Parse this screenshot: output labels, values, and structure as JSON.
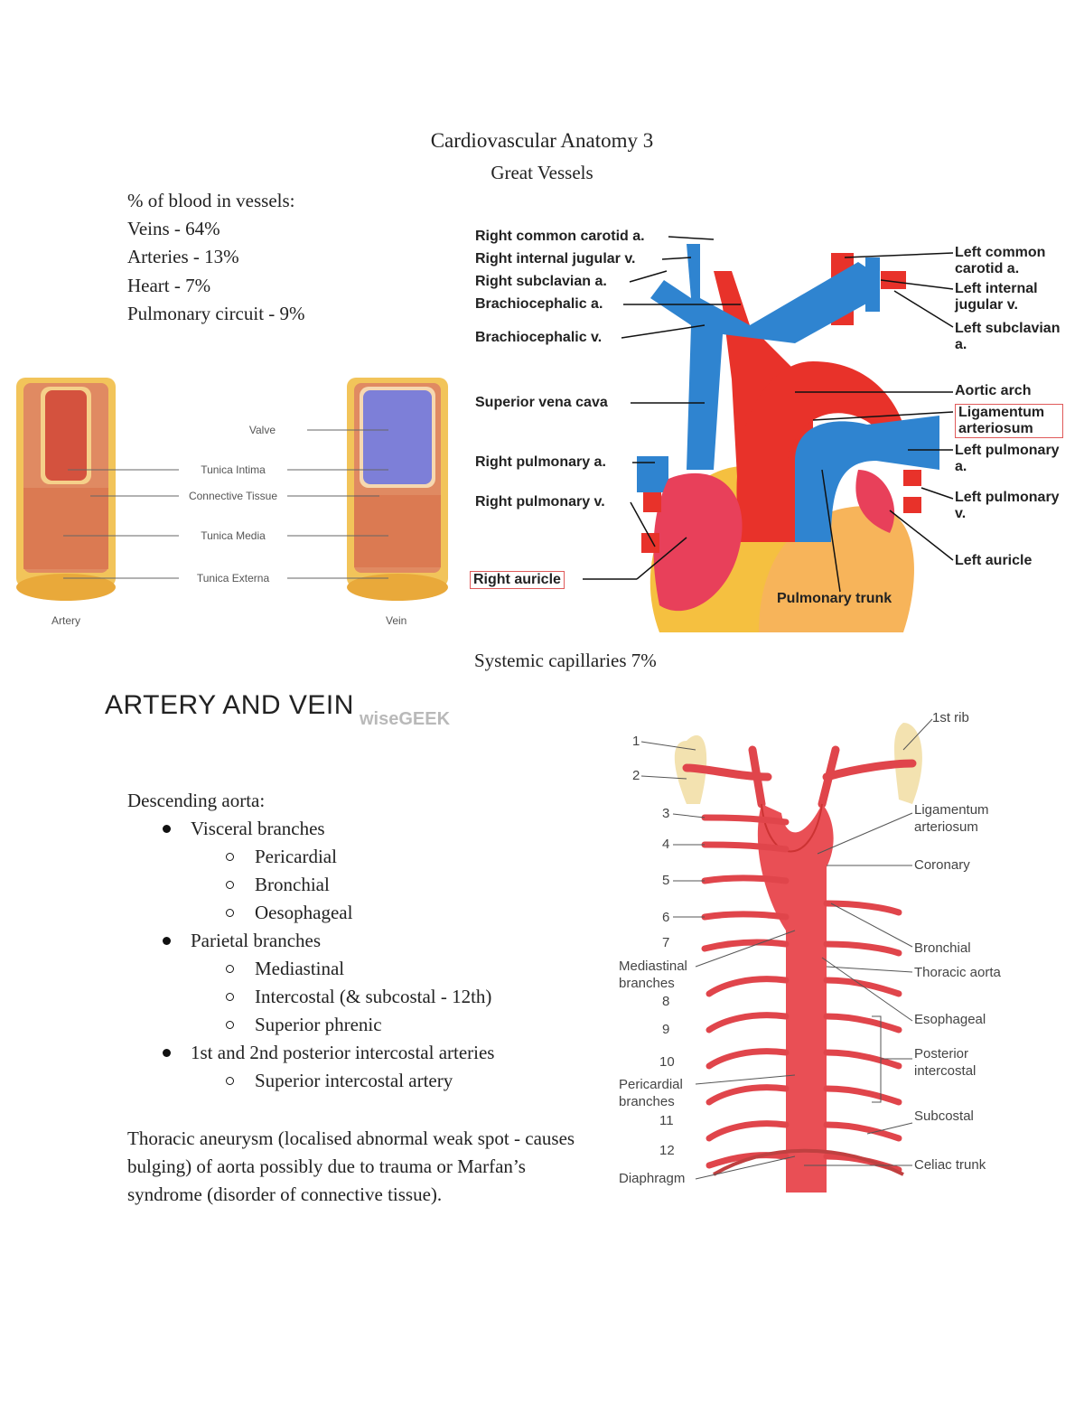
{
  "header": {
    "title": "Cardiovascular Anatomy 3",
    "subtitle": "Great Vessels"
  },
  "blood_distribution": {
    "heading": "% of blood in vessels:",
    "items": [
      "Veins - 64%",
      "Arteries - 13%",
      "Heart - 7%",
      "Pulmonary circuit - 9%"
    ]
  },
  "artery_vein_figure": {
    "labels": [
      "Valve",
      "Tunica Intima",
      "Connective Tissue",
      "Tunica Media",
      "Tunica Externa"
    ],
    "captions": [
      "Artery",
      "Vein"
    ],
    "banner": "ARTERY AND VEIN",
    "watermark": "wiseGEEK"
  },
  "great_vessels_figure": {
    "left_labels": [
      "Right common carotid a.",
      "Right internal jugular v.",
      "Right subclavian a.",
      "Brachiocephalic a.",
      "Brachiocephalic v.",
      "Superior vena cava",
      "Right pulmonary a.",
      "Right pulmonary v.",
      "Right auricle"
    ],
    "right_labels": [
      "Left common carotid a.",
      "Left internal jugular v.",
      "Left subclavian a.",
      "Aortic arch",
      "Ligamentum arteriosum",
      "Left pulmonary a.",
      "Left pulmonary v.",
      "Left auricle"
    ],
    "bottom_label": "Pulmonary trunk"
  },
  "systemic_capillaries": "Systemic capillaries 7%",
  "descending_aorta": {
    "heading": "Descending aorta:",
    "groups": [
      {
        "label": "Visceral branches",
        "items": [
          "Pericardial",
          "Bronchial",
          "Oesophageal"
        ]
      },
      {
        "label": "Parietal branches",
        "items": [
          "Mediastinal",
          "Intercostal (& subcostal - 12th)",
          "Superior phrenic"
        ]
      },
      {
        "label": "1st and 2nd posterior intercostal arteries",
        "items": [
          "Superior intercostal artery"
        ]
      }
    ]
  },
  "aneurysm_note": "Thoracic aneurysm (localised abnormal weak spot - causes bulging) of aorta possibly due to trauma or Marfan’s syndrome (disorder of connective tissue).",
  "aorta_figure": {
    "numbers": [
      "1",
      "2",
      "3",
      "4",
      "5",
      "6",
      "7",
      "8",
      "9",
      "10",
      "11",
      "12"
    ],
    "left_labels": [
      "Mediastinal branches",
      "Pericardial branches",
      "Diaphragm"
    ],
    "right_labels": [
      "1st rib",
      "Ligamentum arteriosum",
      "Coronary",
      "Bronchial",
      "Thoracic aorta",
      "Esophageal",
      "Posterior intercostal",
      "Subcostal",
      "Celiac trunk"
    ]
  }
}
